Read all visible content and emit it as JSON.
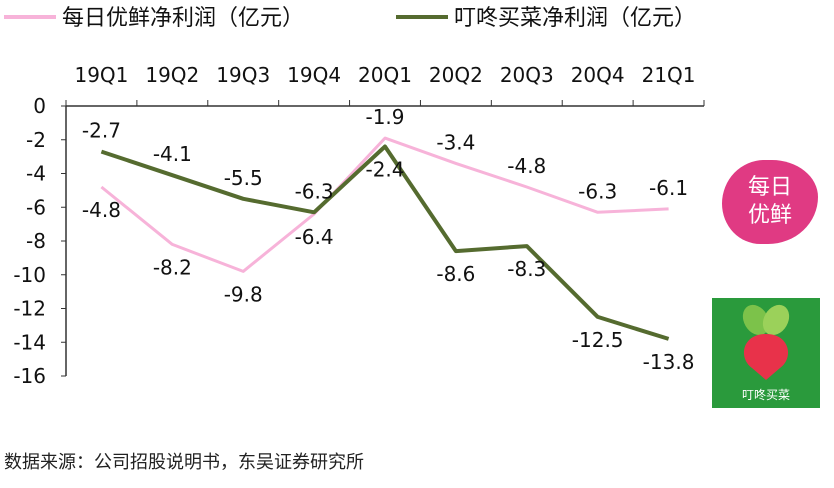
{
  "chart_data": {
    "type": "line",
    "categories": [
      "19Q1",
      "19Q2",
      "19Q3",
      "19Q4",
      "20Q1",
      "20Q2",
      "20Q3",
      "20Q4",
      "21Q1"
    ],
    "series": [
      {
        "name": "每日优鲜净利润（亿元）",
        "color": "#f7b3d9",
        "values": [
          -4.8,
          -8.2,
          -9.8,
          -6.4,
          -1.9,
          -3.4,
          -4.8,
          -6.3,
          -6.1
        ]
      },
      {
        "name": "叮咚买菜净利润（亿元）",
        "color": "#556b2f",
        "values": [
          -2.7,
          -4.1,
          -5.5,
          -6.3,
          -2.4,
          -8.6,
          -8.3,
          -12.5,
          -13.8
        ]
      }
    ],
    "series_labels": [
      [
        "-4.8",
        "-8.2",
        "-9.8",
        "-6.4",
        "-1.9",
        "-3.4",
        "-4.8",
        "-6.3",
        "-6.1"
      ],
      [
        "-2.7",
        "-4.1",
        "-5.5",
        "-6.3",
        "-2.4",
        "-8.6",
        "-8.3",
        "-12.5",
        "-13.8"
      ]
    ],
    "yticks": [
      "0",
      "-2",
      "-4",
      "-6",
      "-8",
      "-10",
      "-12",
      "-14",
      "-16"
    ],
    "ylim": [
      -16,
      0
    ],
    "x_axis_position": "top",
    "legend_position": "top",
    "grid": false,
    "title": "",
    "xlabel": "",
    "ylabel": ""
  },
  "source_note": "数据来源：公司招股说明书，东吴证券研究所",
  "logos": {
    "mrfresh": {
      "line1": "每日",
      "line2": "优鲜",
      "color": "#e03a83"
    },
    "dingdong": {
      "text": "叮咚买菜",
      "color": "#2a9a3c"
    }
  }
}
